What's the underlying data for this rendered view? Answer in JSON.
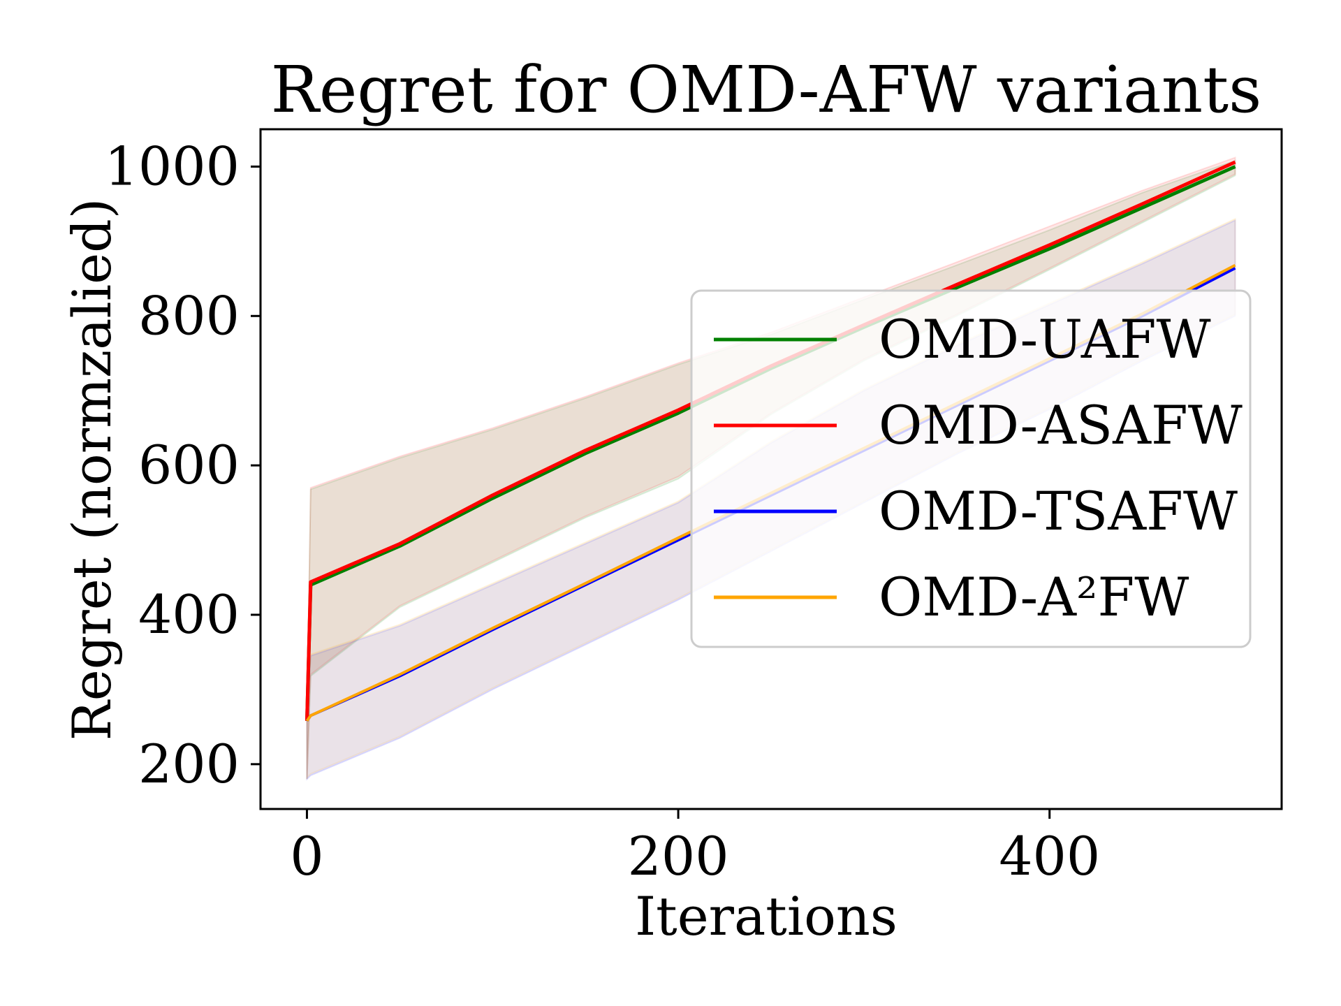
{
  "chart_data": {
    "type": "line",
    "title": "Regret for OMD-AFW variants",
    "xlabel": "Iterations",
    "ylabel": "Regret (normzalied)",
    "xlim": [
      -25,
      525
    ],
    "ylim": [
      140,
      1050
    ],
    "xticks": [
      0,
      200,
      400
    ],
    "yticks": [
      200,
      400,
      600,
      800,
      1000
    ],
    "legend_position": "right",
    "grid": false,
    "series": [
      {
        "name": "OMD-UAFW",
        "color": "#008000",
        "x": [
          0,
          2,
          50,
          100,
          150,
          200,
          250,
          300,
          350,
          400,
          450,
          500
        ],
        "y": [
          258,
          440,
          492,
          556,
          616,
          670,
          730,
          785,
          838,
          890,
          945,
          1000
        ],
        "band_lower": [
          180,
          318,
          410,
          470,
          530,
          582,
          668,
          740,
          800,
          862,
          925,
          988
        ],
        "band_upper": [
          258,
          568,
          610,
          648,
          690,
          735,
          775,
          822,
          868,
          915,
          965,
          1008
        ]
      },
      {
        "name": "OMD-ASAFW",
        "color": "#ff0000",
        "x": [
          0,
          2,
          50,
          100,
          150,
          200,
          250,
          300,
          350,
          400,
          450,
          500
        ],
        "y": [
          258,
          444,
          495,
          560,
          620,
          674,
          733,
          788,
          842,
          895,
          950,
          1006
        ],
        "band_lower": [
          180,
          320,
          412,
          472,
          532,
          585,
          670,
          742,
          802,
          864,
          927,
          990
        ],
        "band_upper": [
          258,
          570,
          612,
          650,
          692,
          737,
          778,
          825,
          872,
          920,
          968,
          1012
        ]
      },
      {
        "name": "OMD-TSAFW",
        "color": "#0000ff",
        "x": [
          0,
          2,
          50,
          100,
          150,
          200,
          250,
          300,
          350,
          400,
          450,
          500
        ],
        "y": [
          258,
          265,
          318,
          380,
          440,
          500,
          560,
          620,
          680,
          740,
          800,
          864
        ],
        "band_lower": [
          180,
          185,
          235,
          300,
          360,
          420,
          485,
          550,
          615,
          675,
          740,
          800
        ],
        "band_upper": [
          258,
          345,
          385,
          440,
          495,
          550,
          630,
          700,
          760,
          815,
          870,
          928
        ]
      },
      {
        "name": "OMD-A²FW",
        "color": "#ffa500",
        "x": [
          0,
          2,
          50,
          100,
          150,
          200,
          250,
          300,
          350,
          400,
          450,
          500
        ],
        "y": [
          258,
          265,
          320,
          382,
          442,
          503,
          563,
          623,
          683,
          743,
          803,
          868
        ],
        "band_lower": [
          182,
          187,
          237,
          302,
          362,
          422,
          487,
          552,
          617,
          677,
          742,
          802
        ],
        "band_upper": [
          258,
          347,
          387,
          442,
          497,
          552,
          632,
          702,
          762,
          817,
          872,
          930
        ]
      }
    ]
  }
}
